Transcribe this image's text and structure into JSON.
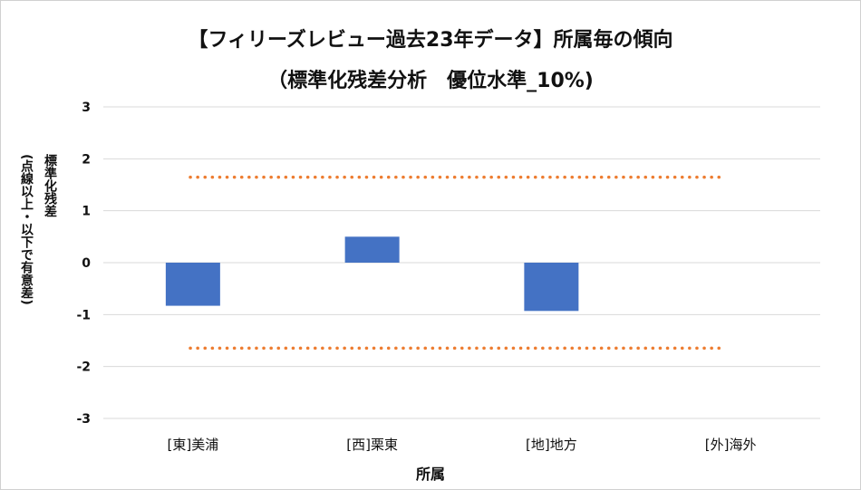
{
  "chart_data": {
    "type": "bar",
    "title_line1": "【フィリーズレビュー過去23年データ】所属毎の傾向",
    "title_line2": "（標準化残差分析　優位水準_10%)",
    "xlabel": "所属",
    "ylabel": "標準化残差",
    "ylabel_note": "(点線以上・以下で有意差)",
    "categories": [
      "[東]美浦",
      "[西]栗東",
      "[地]地方",
      "[外]海外"
    ],
    "values": [
      -0.83,
      0.5,
      -0.93,
      0
    ],
    "ylim": [
      -3,
      3
    ],
    "yticks": [
      3,
      2,
      1,
      0,
      -1,
      -2,
      -3
    ],
    "threshold_lines": [
      1.645,
      -1.645
    ],
    "grid": true,
    "legend": "none",
    "colors": {
      "bar": "#4472C4",
      "threshold": "#ED7D31",
      "grid": "#d9d9d9"
    }
  }
}
